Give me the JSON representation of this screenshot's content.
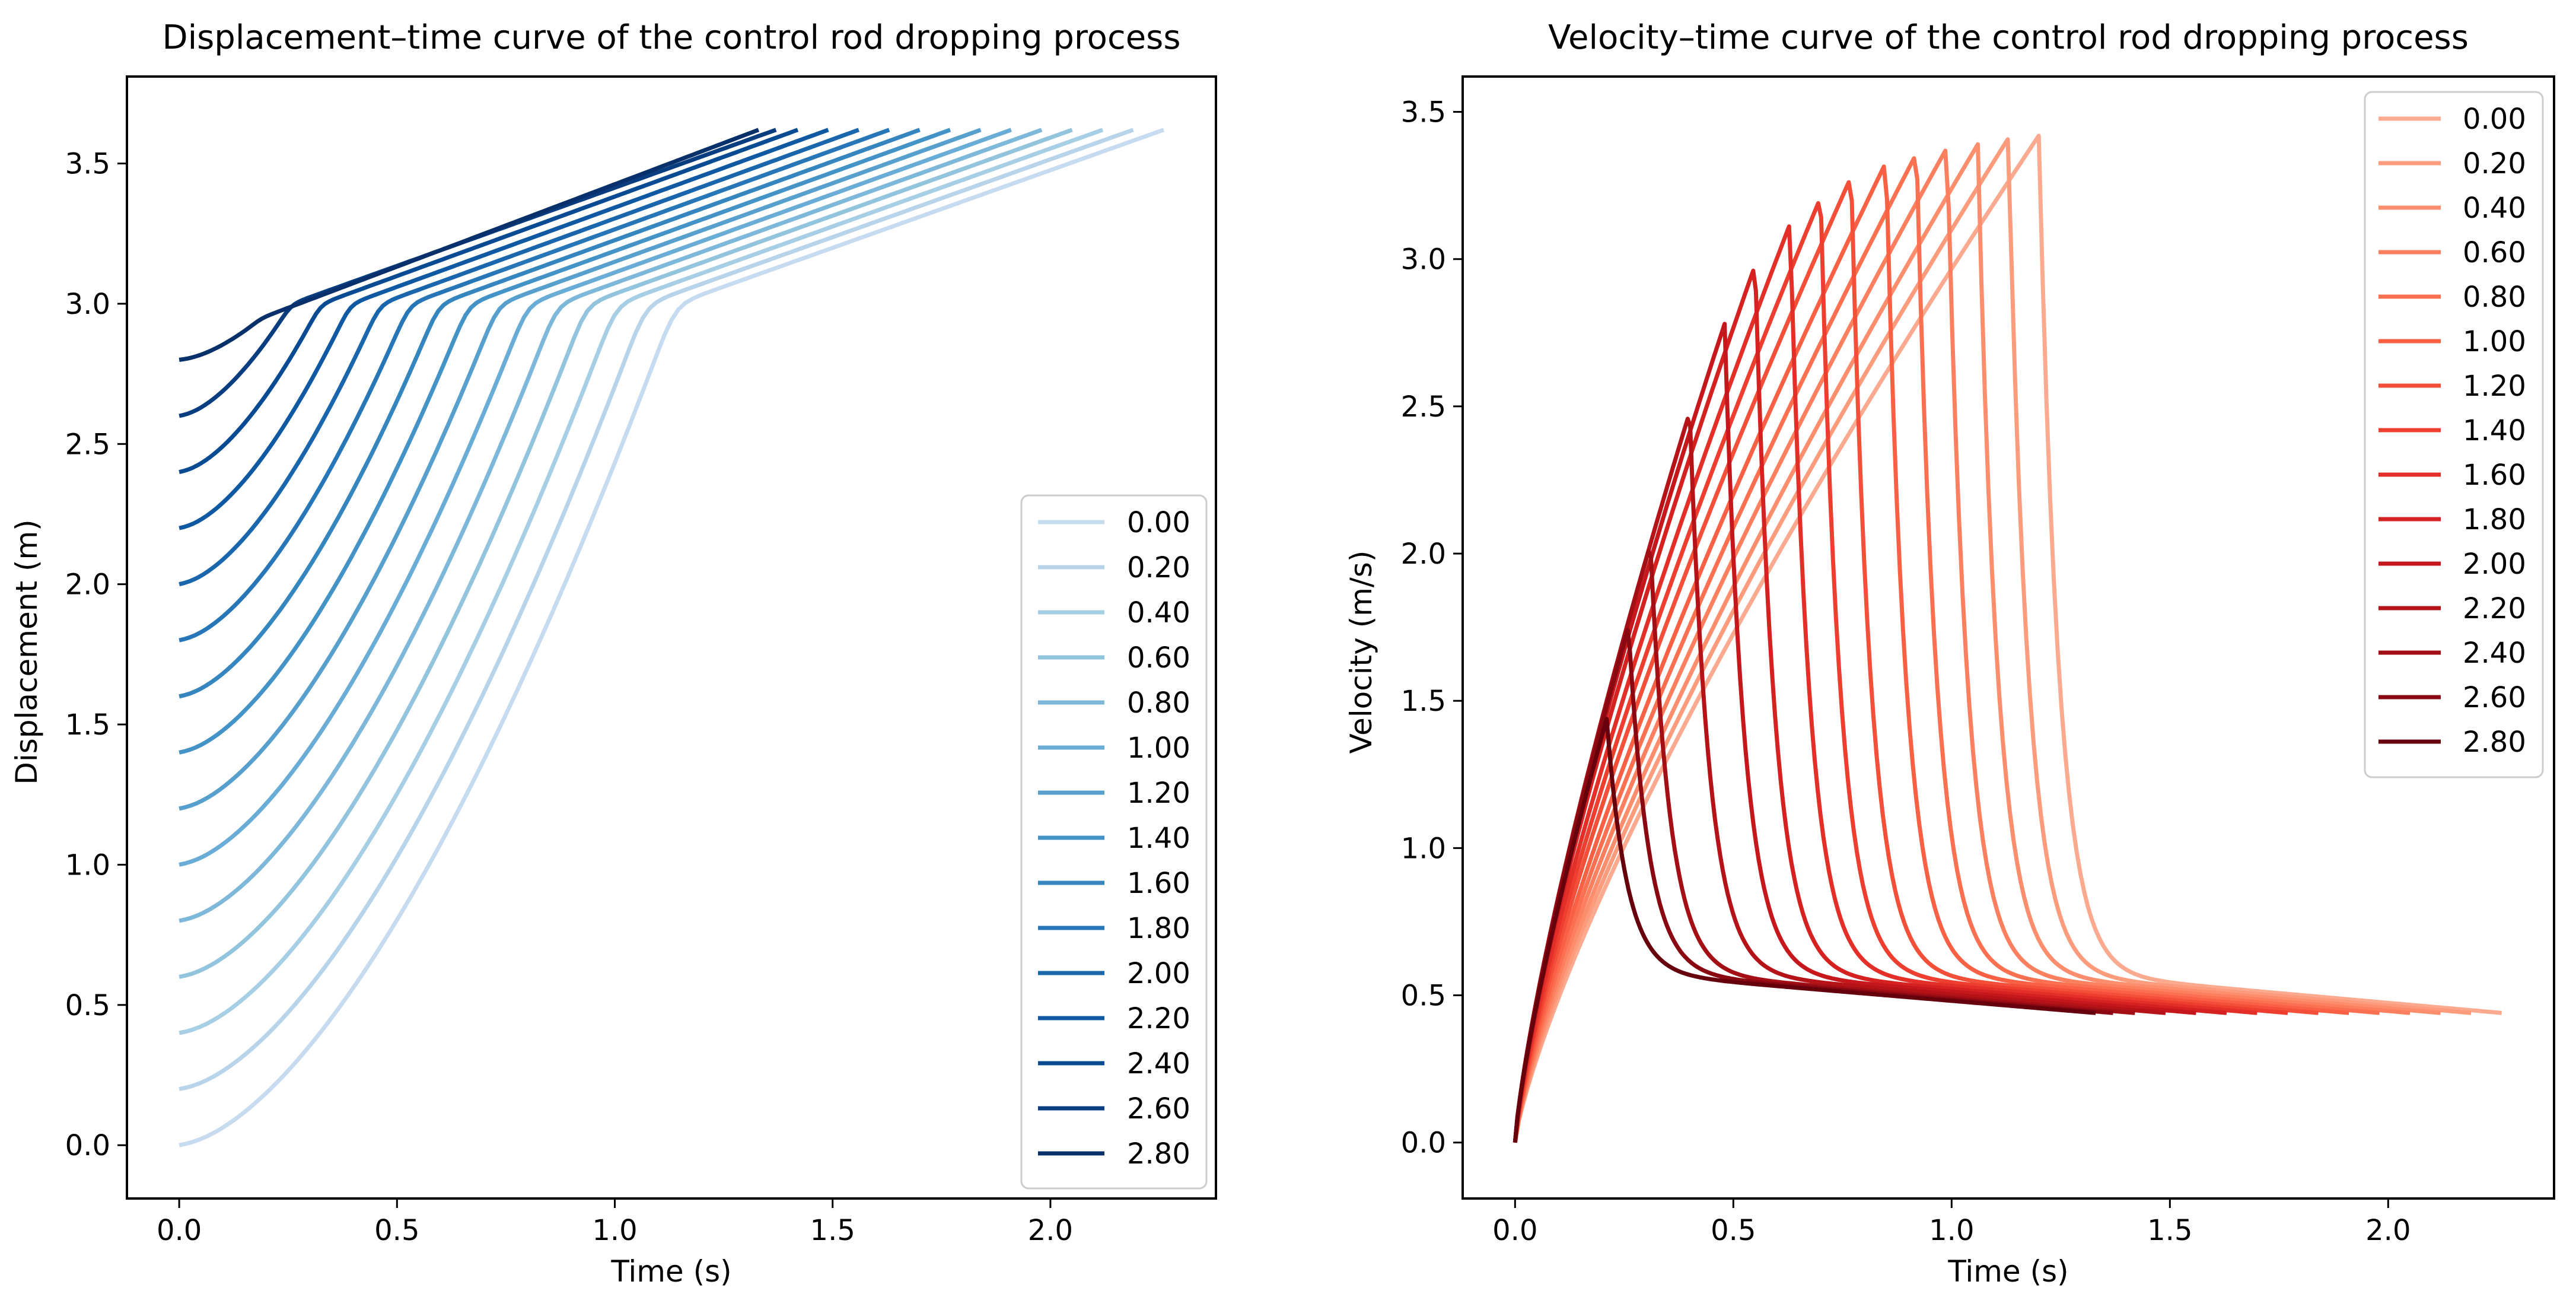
{
  "chart_data": [
    {
      "type": "line",
      "title": "Displacement–time curve of the control rod dropping process",
      "xlabel": "Time (s)",
      "ylabel": "Displacement (m)",
      "xlim": [
        -0.12,
        2.38
      ],
      "ylim": [
        -0.19,
        3.81
      ],
      "xticks": [
        0.0,
        0.5,
        1.0,
        1.5,
        2.0
      ],
      "xtick_labels": [
        "0.0",
        "0.5",
        "1.0",
        "1.5",
        "2.0"
      ],
      "yticks": [
        0.0,
        0.5,
        1.0,
        1.5,
        2.0,
        2.5,
        3.0,
        3.5
      ],
      "ytick_labels": [
        "0.0",
        "0.5",
        "1.0",
        "1.5",
        "2.0",
        "2.5",
        "3.0",
        "3.5"
      ],
      "legend_position": "lower-right",
      "colormap": "Blues",
      "series": [
        {
          "name": "0.00",
          "color": "#c6dbef",
          "start_displacement": 0.0,
          "end_time": 2.26,
          "end_displacement": 3.62
        },
        {
          "name": "0.20",
          "color": "#b7d4ea",
          "start_displacement": 0.2,
          "end_time": 2.19,
          "end_displacement": 3.62
        },
        {
          "name": "0.40",
          "color": "#a6cee4",
          "start_displacement": 0.4,
          "end_time": 2.12,
          "end_displacement": 3.62
        },
        {
          "name": "0.60",
          "color": "#92c4de",
          "start_displacement": 0.6,
          "end_time": 2.05,
          "end_displacement": 3.62
        },
        {
          "name": "0.80",
          "color": "#7db8da",
          "start_displacement": 0.8,
          "end_time": 1.98,
          "end_displacement": 3.62
        },
        {
          "name": "1.00",
          "color": "#69acd5",
          "start_displacement": 1.0,
          "end_time": 1.91,
          "end_displacement": 3.62
        },
        {
          "name": "1.20",
          "color": "#57a0ce",
          "start_displacement": 1.2,
          "end_time": 1.84,
          "end_displacement": 3.62
        },
        {
          "name": "1.40",
          "color": "#4493c7",
          "start_displacement": 1.4,
          "end_time": 1.77,
          "end_displacement": 3.62
        },
        {
          "name": "1.60",
          "color": "#3585bf",
          "start_displacement": 1.6,
          "end_time": 1.7,
          "end_displacement": 3.62
        },
        {
          "name": "1.80",
          "color": "#2676b8",
          "start_displacement": 1.8,
          "end_time": 1.63,
          "end_displacement": 3.62
        },
        {
          "name": "2.00",
          "color": "#1966ad",
          "start_displacement": 2.0,
          "end_time": 1.56,
          "end_displacement": 3.62
        },
        {
          "name": "2.20",
          "color": "#0e59a2",
          "start_displacement": 2.2,
          "end_time": 1.49,
          "end_displacement": 3.62
        },
        {
          "name": "2.40",
          "color": "#084b93",
          "start_displacement": 2.4,
          "end_time": 1.42,
          "end_displacement": 3.62
        },
        {
          "name": "2.60",
          "color": "#083d7f",
          "start_displacement": 2.6,
          "end_time": 1.37,
          "end_displacement": 3.62
        },
        {
          "name": "2.80",
          "color": "#08306b",
          "start_displacement": 2.8,
          "end_time": 1.33,
          "end_displacement": 3.62
        }
      ]
    },
    {
      "type": "line",
      "title": "Velocity–time curve of the control rod dropping process",
      "xlabel": "Time (s)",
      "ylabel": "Velocity (m/s)",
      "xlim": [
        -0.12,
        2.38
      ],
      "ylim": [
        -0.19,
        3.62
      ],
      "xticks": [
        0.0,
        0.5,
        1.0,
        1.5,
        2.0
      ],
      "xtick_labels": [
        "0.0",
        "0.5",
        "1.0",
        "1.5",
        "2.0"
      ],
      "yticks": [
        0.0,
        0.5,
        1.0,
        1.5,
        2.0,
        2.5,
        3.0,
        3.5
      ],
      "ytick_labels": [
        "0.0",
        "0.5",
        "1.0",
        "1.5",
        "2.0",
        "2.5",
        "3.0",
        "3.5"
      ],
      "legend_position": "upper-right",
      "colormap": "Reds",
      "series": [
        {
          "name": "0.00",
          "color": "#fcaa8f",
          "peak_time": 1.2,
          "peak_velocity": 3.42,
          "end_time": 2.26,
          "end_velocity": 0.44
        },
        {
          "name": "0.20",
          "color": "#fc9c7d",
          "peak_time": 1.13,
          "peak_velocity": 3.41,
          "end_time": 2.19,
          "end_velocity": 0.44
        },
        {
          "name": "0.40",
          "color": "#fc8e6e",
          "peak_time": 1.06,
          "peak_velocity": 3.39,
          "end_time": 2.12,
          "end_velocity": 0.44
        },
        {
          "name": "0.60",
          "color": "#fc7f5f",
          "peak_time": 0.99,
          "peak_velocity": 3.38,
          "end_time": 2.05,
          "end_velocity": 0.44
        },
        {
          "name": "0.80",
          "color": "#fb7050",
          "peak_time": 0.92,
          "peak_velocity": 3.36,
          "end_time": 1.98,
          "end_velocity": 0.44
        },
        {
          "name": "1.00",
          "color": "#f96044",
          "peak_time": 0.85,
          "peak_velocity": 3.33,
          "end_time": 1.91,
          "end_velocity": 0.44
        },
        {
          "name": "1.20",
          "color": "#f44f39",
          "peak_time": 0.77,
          "peak_velocity": 3.28,
          "end_time": 1.84,
          "end_velocity": 0.44
        },
        {
          "name": "1.40",
          "color": "#ee3e2f",
          "peak_time": 0.7,
          "peak_velocity": 3.21,
          "end_time": 1.77,
          "end_velocity": 0.44
        },
        {
          "name": "1.60",
          "color": "#e32f27",
          "peak_time": 0.63,
          "peak_velocity": 3.12,
          "end_time": 1.7,
          "end_velocity": 0.44
        },
        {
          "name": "1.80",
          "color": "#d52221",
          "peak_time": 0.55,
          "peak_velocity": 2.98,
          "end_time": 1.63,
          "end_velocity": 0.44
        },
        {
          "name": "2.00",
          "color": "#c5171c",
          "peak_time": 0.48,
          "peak_velocity": 2.78,
          "end_time": 1.56,
          "end_velocity": 0.44
        },
        {
          "name": "2.20",
          "color": "#b61319",
          "peak_time": 0.4,
          "peak_velocity": 2.48,
          "end_time": 1.49,
          "end_velocity": 0.44
        },
        {
          "name": "2.40",
          "color": "#a40f16",
          "peak_time": 0.31,
          "peak_velocity": 2.03,
          "end_time": 1.42,
          "end_velocity": 0.44
        },
        {
          "name": "2.60",
          "color": "#8a0812",
          "peak_time": 0.26,
          "peak_velocity": 1.75,
          "end_time": 1.37,
          "end_velocity": 0.44
        },
        {
          "name": "2.80",
          "color": "#67000d",
          "peak_time": 0.21,
          "peak_velocity": 1.44,
          "end_time": 1.33,
          "end_velocity": 0.44
        }
      ]
    }
  ]
}
